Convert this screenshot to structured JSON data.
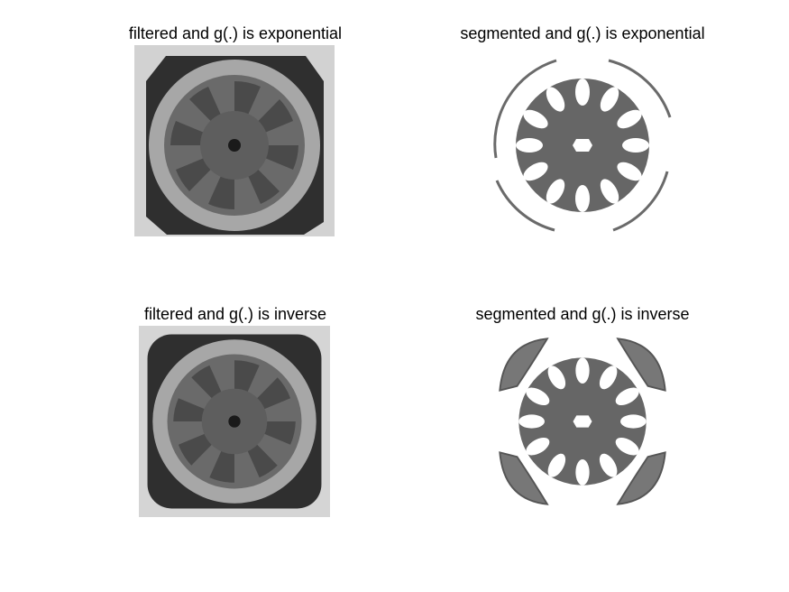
{
  "panels": [
    {
      "title": "filtered and g(.) is exponential"
    },
    {
      "title": "segmented and g(.) is exponential"
    },
    {
      "title": "filtered and g(.) is inverse"
    },
    {
      "title": "segmented and g(.) is inverse"
    }
  ],
  "colors": {
    "background": "#ffffff",
    "frame_light": "#c9c9c9",
    "ring": "#a9a9a9",
    "dark_corner": "#2e2e2e",
    "hub": "#5c5c5c",
    "spoke_dark": "#4a4a4a",
    "segment_fill": "#6a6a6a",
    "hole": "#ffffff"
  }
}
